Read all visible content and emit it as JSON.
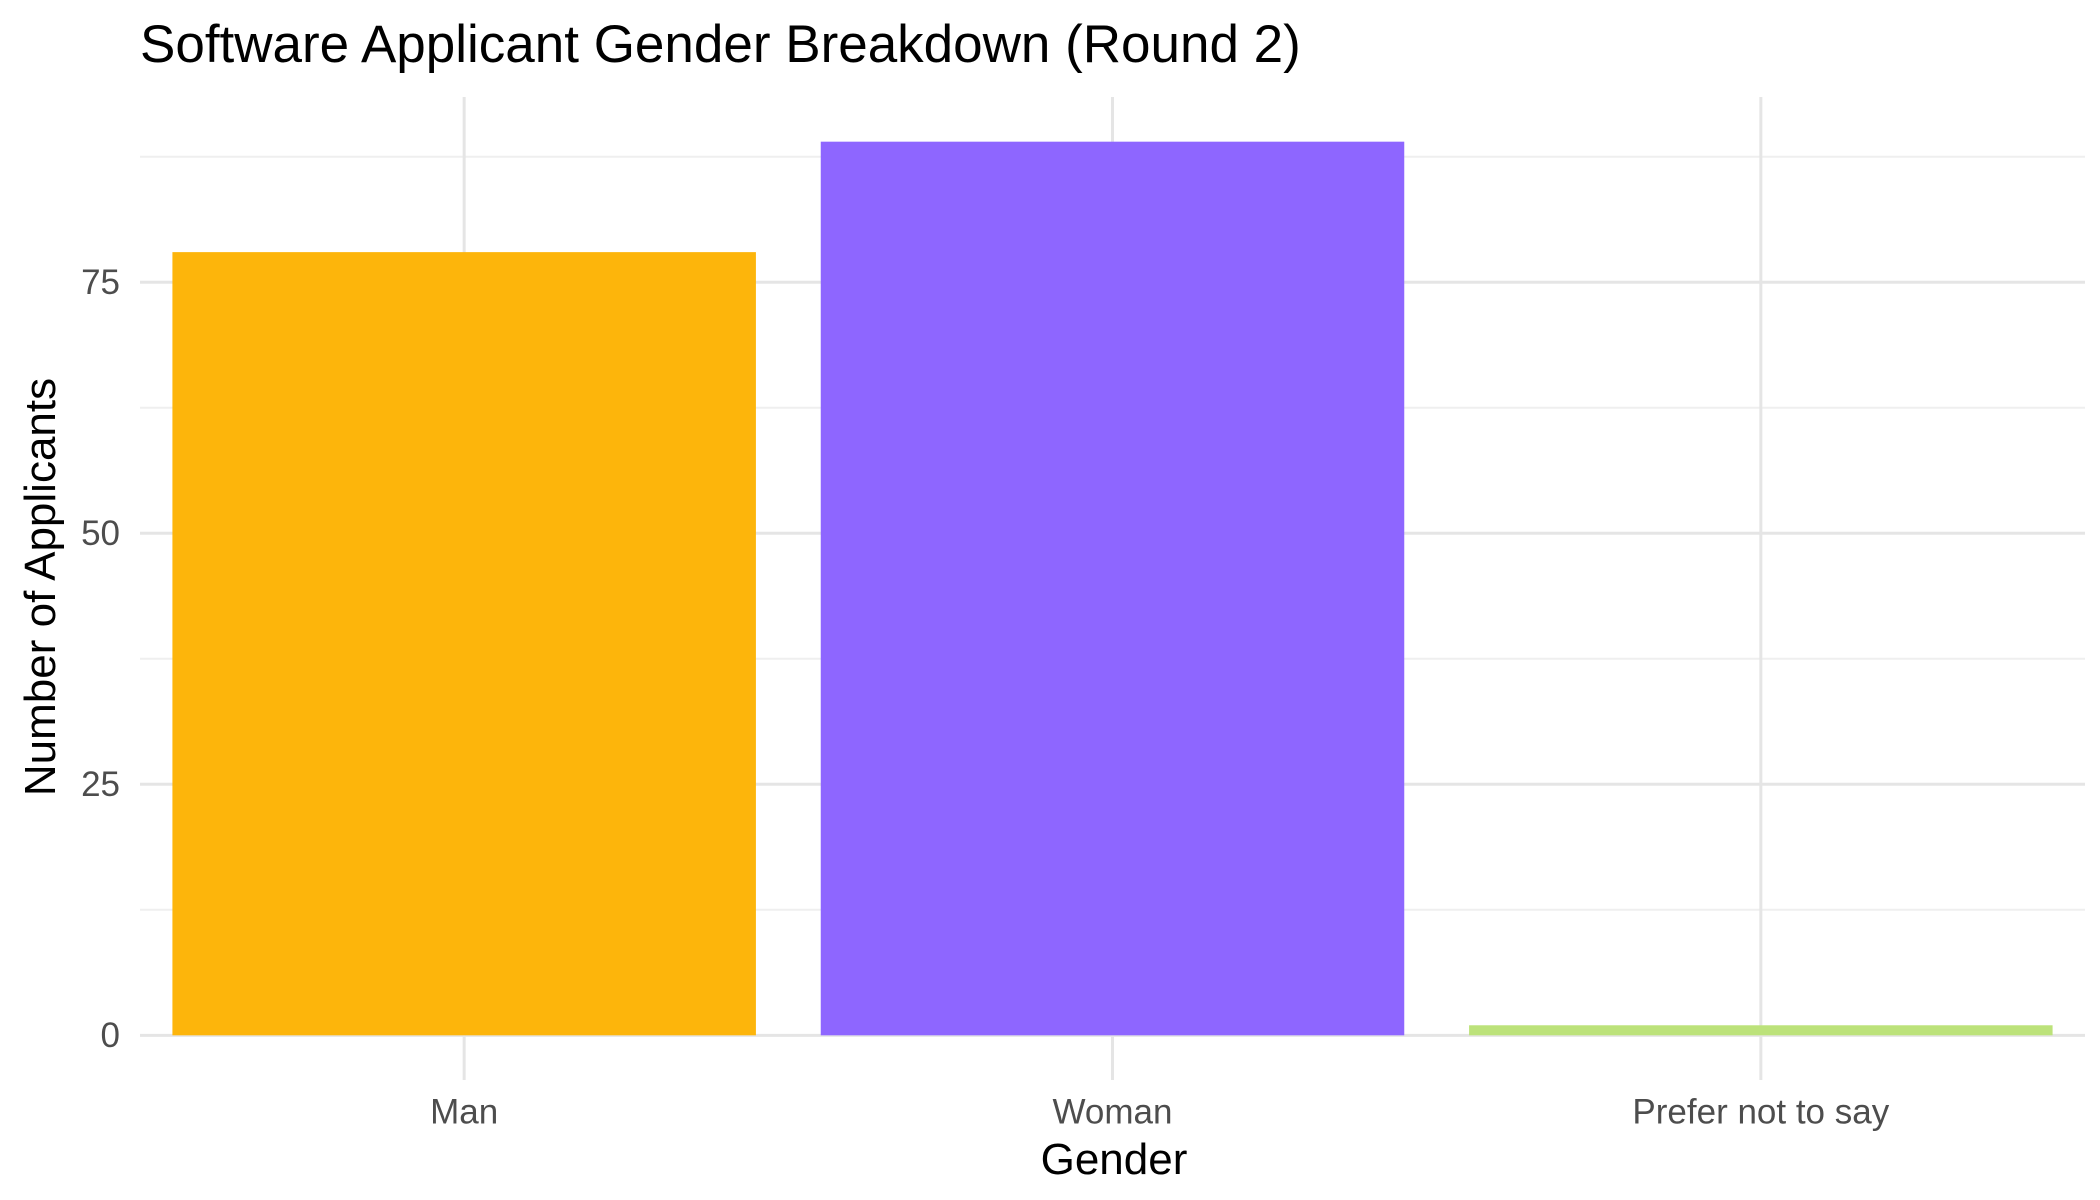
{
  "chart_data": {
    "type": "bar",
    "title": "Software Applicant Gender Breakdown (Round 2)",
    "xlabel": "Gender",
    "ylabel": "Number of Applicants",
    "categories": [
      "Man",
      "Woman",
      "Prefer not to say"
    ],
    "values": [
      78,
      89,
      1
    ],
    "colors": [
      "#FDB50B",
      "#8E66FF",
      "#BCE27A"
    ],
    "ylim": [
      -4.45,
      93.45
    ],
    "yticks": [
      0,
      25,
      50,
      75
    ],
    "ytick_labels": [
      "0",
      "25",
      "50",
      "75"
    ],
    "y_minor_ticks": [
      12.5,
      37.5,
      62.5,
      87.5
    ],
    "grid": true,
    "legend": "none"
  }
}
